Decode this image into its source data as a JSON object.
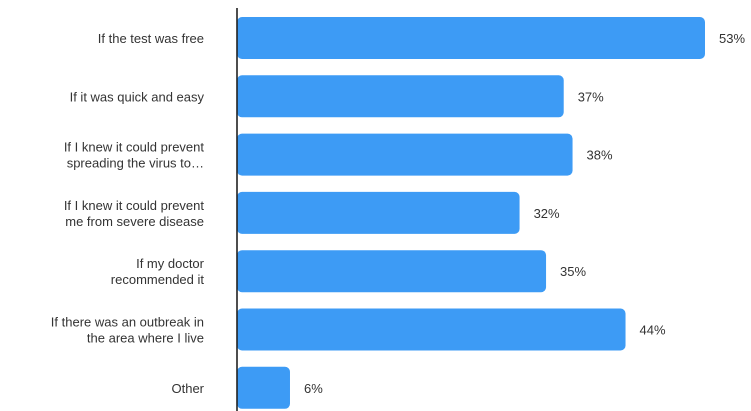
{
  "chart_data": {
    "type": "bar",
    "orientation": "horizontal",
    "title": "",
    "xlabel": "",
    "ylabel": "",
    "categories": [
      [
        "If the test was free"
      ],
      [
        "If it was quick and easy"
      ],
      [
        "If I knew it could prevent",
        "spreading the virus to…"
      ],
      [
        "If I knew it could prevent",
        "me from severe disease"
      ],
      [
        "If my doctor",
        "recommended it"
      ],
      [
        "If there was an outbreak in",
        "the area where I live"
      ],
      [
        "Other"
      ]
    ],
    "values": [
      53,
      37,
      38,
      32,
      35,
      44,
      6
    ],
    "value_labels": [
      "53%",
      "37%",
      "38%",
      "32%",
      "35%",
      "44%",
      "6%"
    ],
    "xlim": [
      0,
      53
    ],
    "grid": false,
    "bar_color": "#3d9bf5"
  }
}
